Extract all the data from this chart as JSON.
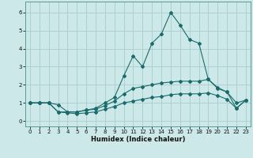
{
  "xlabel": "Humidex (Indice chaleur)",
  "background_color": "#cce8e8",
  "grid_color": "#aacccc",
  "line_color": "#1a6b6b",
  "xlim": [
    -0.5,
    23.5
  ],
  "ylim": [
    -0.3,
    6.6
  ],
  "xticks": [
    0,
    1,
    2,
    3,
    4,
    5,
    6,
    7,
    8,
    9,
    10,
    11,
    12,
    13,
    14,
    15,
    16,
    17,
    18,
    19,
    20,
    21,
    22,
    23
  ],
  "yticks": [
    0,
    1,
    2,
    3,
    4,
    5,
    6
  ],
  "x": [
    0,
    1,
    2,
    3,
    4,
    5,
    6,
    7,
    8,
    9,
    10,
    11,
    12,
    13,
    14,
    15,
    16,
    17,
    18,
    19,
    20,
    21,
    22,
    23
  ],
  "line_max": [
    1.0,
    1.0,
    1.0,
    0.5,
    0.5,
    0.5,
    0.6,
    0.7,
    1.0,
    1.3,
    2.5,
    3.6,
    3.0,
    4.3,
    4.8,
    6.0,
    5.3,
    4.5,
    4.3,
    2.3,
    1.8,
    1.6,
    0.7,
    1.15
  ],
  "line_mean": [
    1.0,
    1.0,
    1.0,
    0.9,
    0.5,
    0.5,
    0.6,
    0.65,
    0.85,
    1.1,
    1.5,
    1.8,
    1.9,
    2.0,
    2.1,
    2.15,
    2.2,
    2.2,
    2.2,
    2.3,
    1.85,
    1.6,
    1.0,
    1.15
  ],
  "line_min": [
    1.0,
    1.0,
    1.0,
    0.5,
    0.45,
    0.4,
    0.45,
    0.5,
    0.65,
    0.8,
    1.0,
    1.1,
    1.2,
    1.3,
    1.35,
    1.45,
    1.5,
    1.5,
    1.5,
    1.55,
    1.4,
    1.2,
    0.7,
    1.15
  ],
  "tick_fontsize": 5.0,
  "xlabel_fontsize": 6.0,
  "spine_color": "#5a9999",
  "marker": "D",
  "markersize": 2.0,
  "linewidth": 0.8
}
